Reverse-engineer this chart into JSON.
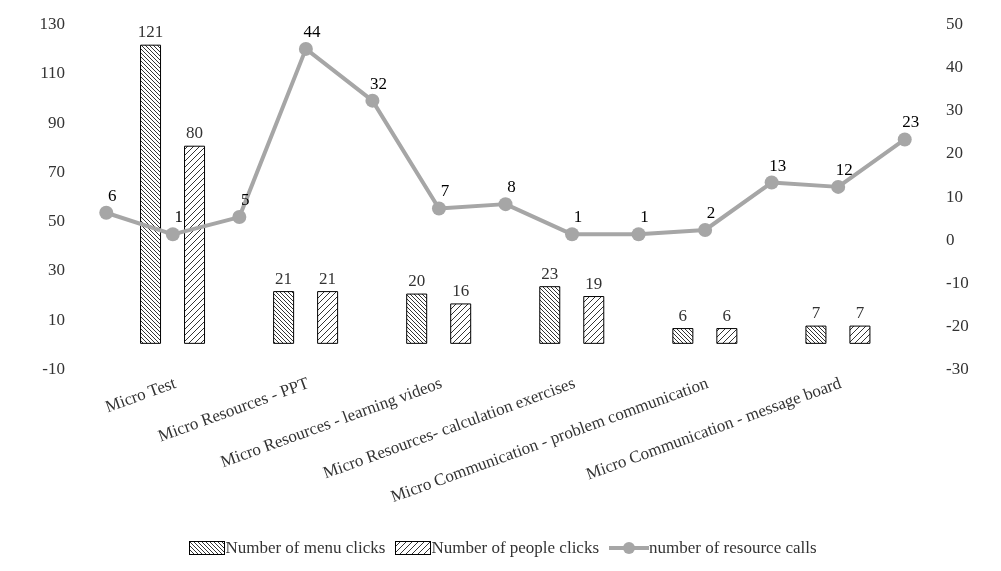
{
  "chart_data": {
    "type": "bar",
    "categories": [
      null,
      "Micro Test",
      null,
      "Micro Resources - PPT",
      null,
      "Micro Resources - learning videos",
      null,
      "Micro Resources- calculation exercises",
      null,
      "Micro Communication - problem communication",
      null,
      "Micro Communication - message board",
      null
    ],
    "series": [
      {
        "name": "Number of menu clicks",
        "color": "#000000",
        "values": [
          null,
          121,
          null,
          21,
          null,
          20,
          null,
          23,
          null,
          6,
          null,
          7,
          null
        ]
      },
      {
        "name": "Number of people clicks",
        "color": "#000000",
        "values": [
          null,
          80,
          null,
          21,
          null,
          16,
          null,
          19,
          null,
          6,
          null,
          7,
          null
        ]
      },
      {
        "name": "number of resource calls",
        "type": "line",
        "axis": "y2",
        "color": "#a6a6a6",
        "values": [
          6,
          1,
          5,
          44,
          32,
          7,
          8,
          1,
          1,
          2,
          13,
          12,
          23
        ]
      }
    ],
    "ylim": [
      -10,
      130
    ],
    "yticks": [
      -10,
      10,
      30,
      50,
      70,
      90,
      110,
      130
    ],
    "y2lim": [
      -30,
      50
    ],
    "y2ticks": [
      -30,
      -20,
      -10,
      0,
      10,
      20,
      30,
      40,
      50
    ],
    "data_labels": true,
    "marker": "circle",
    "legend": "bottom",
    "grid": false
  }
}
